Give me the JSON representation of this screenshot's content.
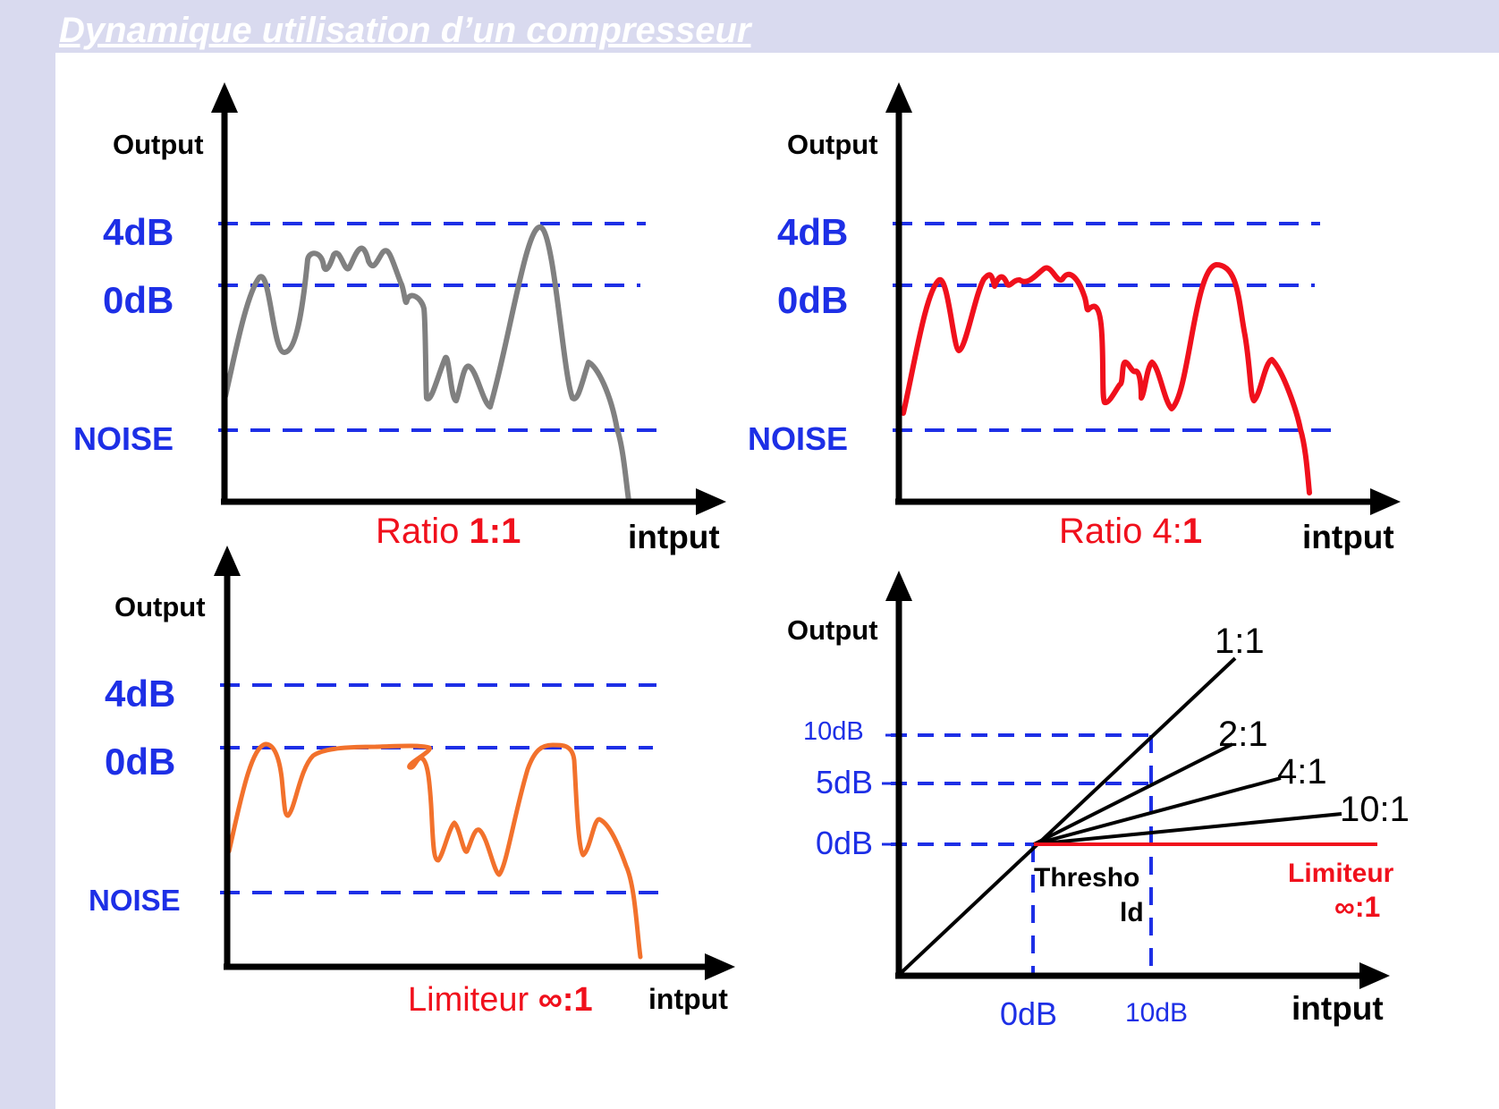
{
  "title": "Dynamique utilisation d’un compresseur",
  "panels": {
    "ratio_1_1": {
      "output_label": "Output",
      "input_label": "intput",
      "level_4db": "4dB",
      "level_0db": "0dB",
      "noise": "NOISE",
      "caption_prefix": "Ratio ",
      "caption_value": "1:1",
      "curve_color": "#808080"
    },
    "ratio_4_1": {
      "output_label": "Output",
      "input_label": "intput",
      "level_4db": "4dB",
      "level_0db": "0dB",
      "noise": "NOISE",
      "caption_prefix": "Ratio 4:",
      "caption_value": "1",
      "curve_color": "#f0101c"
    },
    "limiter": {
      "output_label": "Output",
      "input_label": "intput",
      "level_4db": "4dB",
      "level_0db": "0dB",
      "noise": "NOISE",
      "caption_prefix": "Limiteur ",
      "caption_value": "∞:1",
      "curve_color": "#f2712c"
    },
    "transfer": {
      "output_label": "Output",
      "input_label": "intput",
      "y_10db": "10dB",
      "y_5db": "5dB",
      "y_0db": "0dB",
      "x_0db": "0dB",
      "x_10db": "10dB",
      "threshold_line1": "Thresho",
      "threshold_line2": "ld",
      "ratio_1_1": "1:1",
      "ratio_2_1": "2:1",
      "ratio_4_1": "4:1",
      "ratio_10_1": "10:1",
      "limiter_line1": "Limiteur",
      "limiter_line2": "∞:1"
    }
  },
  "colors": {
    "guide_blue": "#1d2fe6",
    "label_blue": "#1d2fe6",
    "caption_red": "#f0101c",
    "axis": "#000000",
    "band": "#d9daef"
  }
}
